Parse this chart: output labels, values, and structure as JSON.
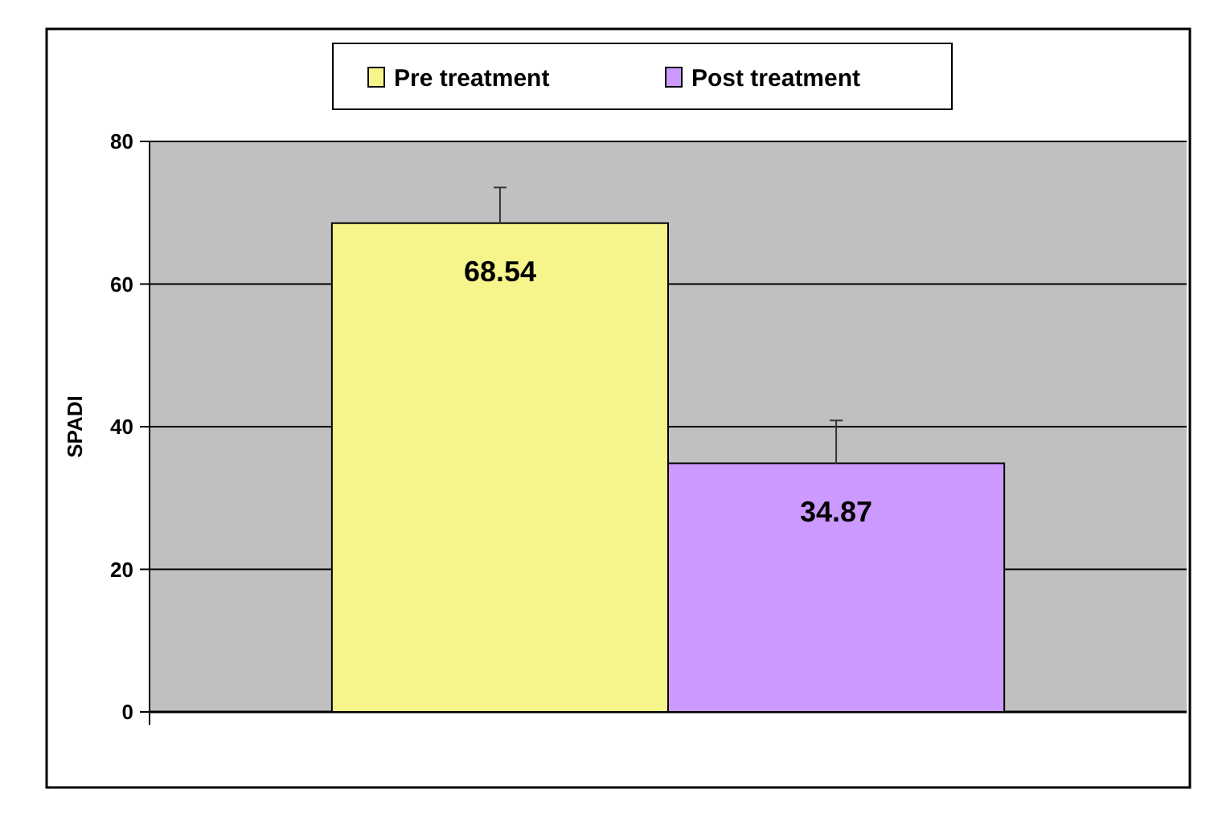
{
  "chart_data": {
    "type": "bar",
    "ylabel": "SPADI",
    "categories": [
      null
    ],
    "series": [
      {
        "name": "Pre treatment",
        "color": "#f5f58c",
        "values": [
          68.54
        ],
        "errors": [
          5
        ]
      },
      {
        "name": "Post treatment",
        "color": "#cc99ff",
        "values": [
          34.87
        ],
        "errors": [
          6
        ]
      }
    ],
    "ylim": [
      0,
      80
    ],
    "yticks": [
      0,
      20,
      40,
      60,
      80
    ],
    "grid": "y",
    "legend": "top",
    "data_labels": true
  }
}
